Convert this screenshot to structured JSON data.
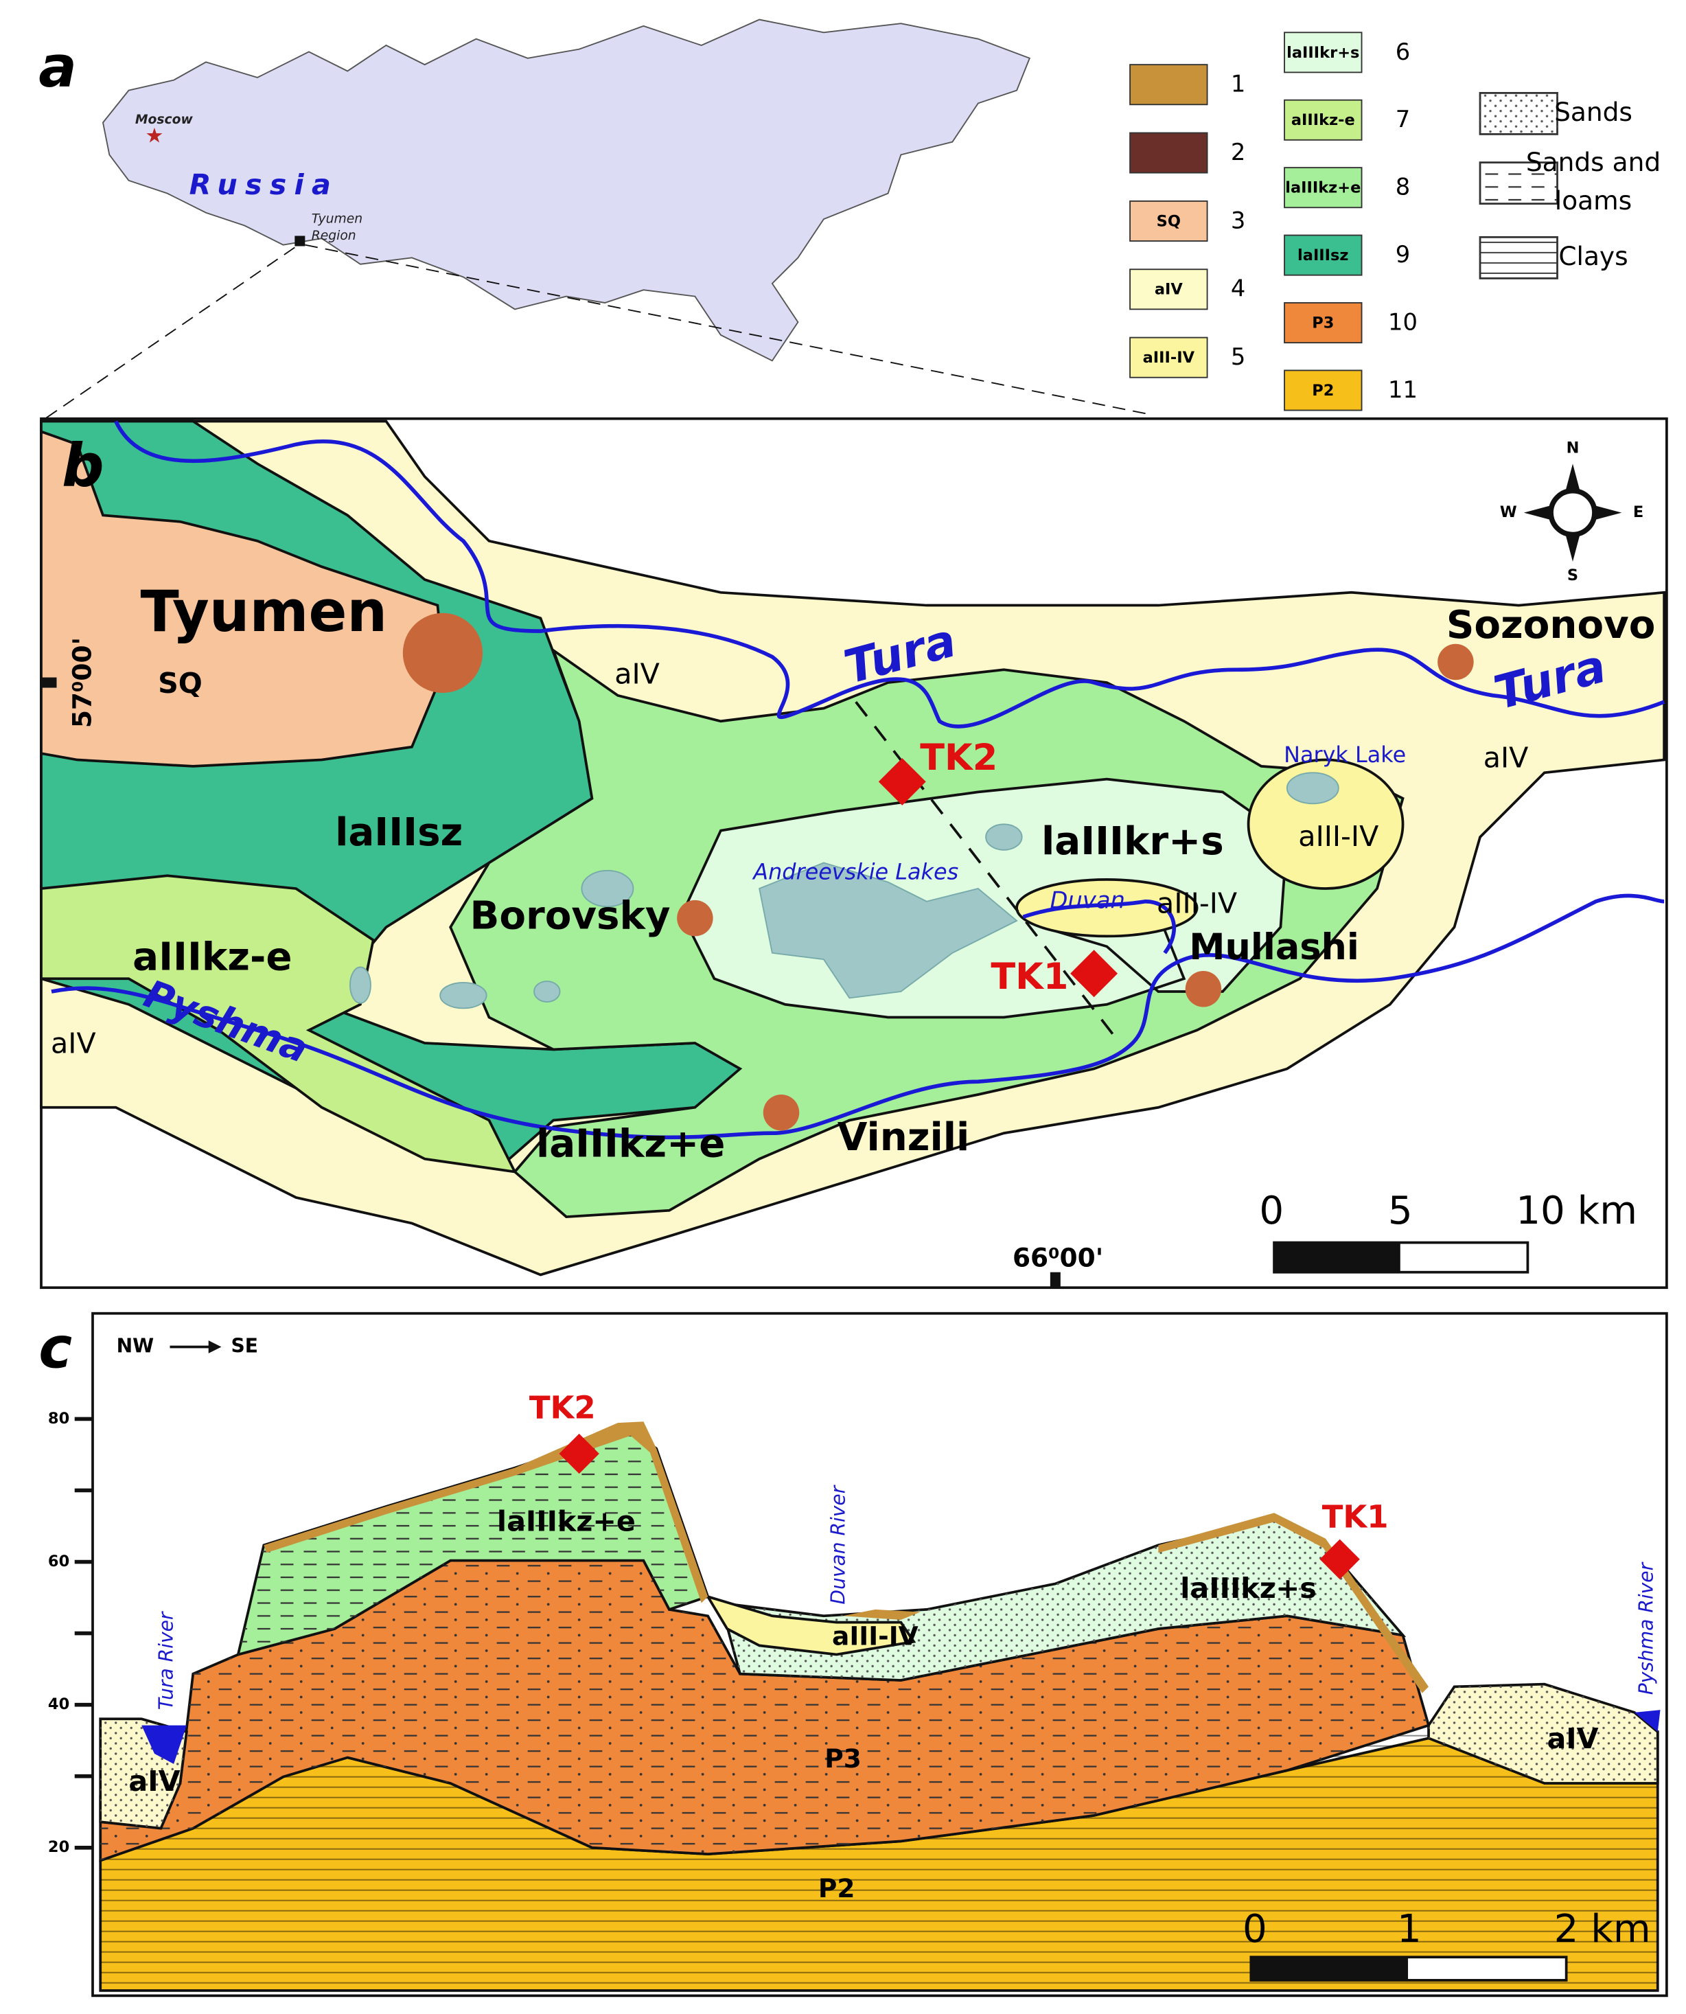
{
  "panel_a": {
    "label": "a",
    "country": "Russia",
    "capital": "Moscow",
    "region_lines": [
      "Tyumen",
      "Region"
    ]
  },
  "legend": {
    "items": [
      {
        "number": 1
      },
      {
        "number": 2
      },
      {
        "number": 3,
        "code": "SQ"
      },
      {
        "number": 4,
        "code": "aIV"
      },
      {
        "number": 5,
        "code": "aIII-IV"
      },
      {
        "number": 6,
        "code": "laIIIkr+s"
      },
      {
        "number": 7,
        "code": "aIIIkz-e"
      },
      {
        "number": 8,
        "code": "laIIIkz+e"
      },
      {
        "number": 9,
        "code": "laIIIsz"
      },
      {
        "number": 10,
        "code": "P3"
      },
      {
        "number": 11,
        "code": "P2"
      }
    ],
    "lithology": [
      {
        "lines": [
          "Sands"
        ]
      },
      {
        "lines": [
          "Sands and",
          "loams"
        ]
      },
      {
        "lines": [
          "Clays"
        ]
      }
    ]
  },
  "panel_b": {
    "label": "b",
    "settlements": [
      "Tyumen",
      "Sozonovo",
      "Borovsky",
      "Vinzili",
      "Mullashi"
    ],
    "units": [
      "SQ",
      "laIIIsz",
      "aIIIkz-e",
      "laIIIkz+e",
      "laIIIkr+s",
      "aIII-IV",
      "aIII-IV",
      "aIV",
      "aIV",
      "aIV"
    ],
    "water": [
      "Tura",
      "Tura",
      "Pyshma",
      "Duvan",
      "Naryk Lake",
      "Andreevskie Lakes"
    ],
    "sites": [
      "TK2",
      "TK1"
    ],
    "compass": {
      "n": "N",
      "e": "E",
      "s": "S",
      "w": "W"
    },
    "latitude": "57⁰00'",
    "longitude": "66⁰00'",
    "scale": [
      "0",
      "5",
      "10 km"
    ]
  },
  "panel_c": {
    "label": "c",
    "direction": [
      "NW",
      "SE"
    ],
    "elevation_ticks": [
      80,
      60,
      40,
      20
    ],
    "rivers": [
      "Tura River",
      "Duvan River",
      "Pyshma River"
    ],
    "units": [
      "laIIIkz+e",
      "aIII-IV",
      "laIIIkz+s",
      "aIV",
      "aIV",
      "P3",
      "P2"
    ],
    "sites": [
      "TK2",
      "TK1"
    ],
    "scale": [
      "0",
      "1",
      "2 km"
    ]
  }
}
